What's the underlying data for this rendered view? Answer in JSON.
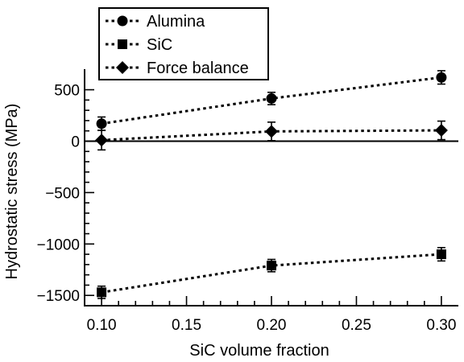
{
  "chart_data": {
    "type": "line",
    "xlabel": "SiC volume fraction",
    "ylabel": "Hydrostatic stress (MPa)",
    "xlim": [
      0.09,
      0.31
    ],
    "ylim": [
      -1600,
      700
    ],
    "x_ticks": [
      0.1,
      0.15,
      0.2,
      0.25,
      0.3
    ],
    "x_tick_labels": [
      "0.10",
      "0.15",
      "0.20",
      "0.25",
      "0.30"
    ],
    "y_ticks": [
      500,
      0,
      -500,
      -1000,
      -1500
    ],
    "y_tick_labels": [
      "500",
      "0",
      "−500",
      "−1000",
      "−1500"
    ],
    "zero_line": true,
    "grid": false,
    "legend_position": "top-left",
    "series": [
      {
        "name": "Alumina",
        "marker": "circle",
        "line_style": "dotted",
        "x": [
          0.1,
          0.2,
          0.3
        ],
        "y": [
          170,
          415,
          620
        ],
        "error": [
          65,
          60,
          65
        ]
      },
      {
        "name": "SiC",
        "marker": "square",
        "line_style": "dotted",
        "x": [
          0.1,
          0.2,
          0.3
        ],
        "y": [
          -1470,
          -1210,
          -1100
        ],
        "error": [
          60,
          60,
          65
        ]
      },
      {
        "name": "Force balance",
        "marker": "diamond",
        "line_style": "dotted",
        "x": [
          0.1,
          0.2,
          0.3
        ],
        "y": [
          10,
          95,
          105
        ],
        "error": [
          95,
          90,
          90
        ]
      }
    ]
  }
}
